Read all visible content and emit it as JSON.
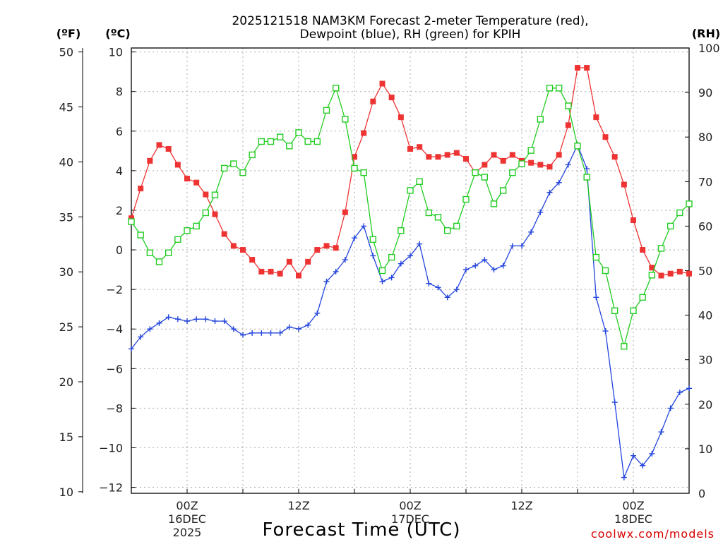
{
  "chart_data": {
    "type": "line",
    "title_line1": "2025121518 NAM3KM Forecast 2-meter Temperature (red),",
    "title_line2": "Dewpoint (blue), RH (green) for KPIH",
    "xlabel": "Forecast Time (UTC)",
    "credit": "coolwx.com/models",
    "units": {
      "fahrenheit": "(ºF)",
      "celsius": "(ºC)",
      "rh": "(RH)"
    },
    "x_range_hours": [
      -6,
      54
    ],
    "celsius_ticks": [
      "10",
      "8",
      "6",
      "4",
      "2",
      "0",
      "−2",
      "−4",
      "−6",
      "−8",
      "−10",
      "−12"
    ],
    "fahrenheit_ticks": [
      "50",
      "45",
      "40",
      "35",
      "30",
      "25",
      "20",
      "15",
      "10"
    ],
    "rh_ticks": [
      "100",
      "90",
      "80",
      "70",
      "60",
      "50",
      "40",
      "30",
      "20",
      "10",
      "0"
    ],
    "x_ticks": [
      {
        "hour": 0,
        "line1": "00Z",
        "line2": "16DEC",
        "line3": "2025"
      },
      {
        "hour": 12,
        "line1": "12Z",
        "line2": "",
        "line3": ""
      },
      {
        "hour": 24,
        "line1": "00Z",
        "line2": "17DEC",
        "line3": ""
      },
      {
        "hour": 36,
        "line1": "12Z",
        "line2": "",
        "line3": ""
      },
      {
        "hour": 48,
        "line1": "00Z",
        "line2": "18DEC",
        "line3": ""
      }
    ],
    "ylim_celsius": [
      -12.3,
      10.2
    ],
    "ylim_rh": [
      0,
      100
    ],
    "colors": {
      "temperature": "#ee3333",
      "dewpoint": "#2244dd",
      "rh": "#22cc22",
      "credit": "#d60000"
    },
    "x_hours": [
      -6,
      -5,
      -4,
      -3,
      -2,
      -1,
      0,
      1,
      2,
      3,
      4,
      5,
      6,
      7,
      8,
      9,
      10,
      11,
      12,
      13,
      14,
      15,
      16,
      17,
      18,
      19,
      20,
      21,
      22,
      23,
      24,
      25,
      26,
      27,
      28,
      29,
      30,
      31,
      32,
      33,
      34,
      35,
      36,
      37,
      38,
      39,
      40,
      41,
      42,
      43,
      44,
      45,
      46,
      47,
      48,
      49,
      50,
      51,
      52,
      53,
      54
    ],
    "series": [
      {
        "name": "Temperature (°C)",
        "axis": "celsius",
        "values": [
          1.6,
          3.1,
          4.5,
          5.3,
          5.1,
          4.3,
          3.6,
          3.4,
          2.8,
          1.8,
          0.8,
          0.2,
          0.0,
          -0.5,
          -1.1,
          -1.1,
          -1.2,
          -0.6,
          -1.3,
          -0.6,
          0.0,
          0.2,
          0.1,
          1.9,
          4.7,
          5.9,
          7.5,
          8.4,
          7.7,
          6.7,
          5.1,
          5.2,
          4.7,
          4.7,
          4.8,
          4.9,
          4.6,
          3.9,
          4.3,
          4.8,
          4.5,
          4.8,
          4.5,
          4.4,
          4.3,
          4.2,
          4.8,
          6.3,
          9.2,
          9.2,
          6.7,
          5.7,
          4.7,
          3.3,
          1.5,
          0.0,
          -0.9,
          -1.3,
          -1.2,
          -1.1,
          -1.2
        ]
      },
      {
        "name": "Dewpoint (°C)",
        "axis": "celsius",
        "values": [
          -5.0,
          -4.4,
          -4.0,
          -3.7,
          -3.4,
          -3.5,
          -3.6,
          -3.5,
          -3.5,
          -3.6,
          -3.6,
          -4.0,
          -4.3,
          -4.2,
          -4.2,
          -4.2,
          -4.2,
          -3.9,
          -4.0,
          -3.8,
          -3.2,
          -1.6,
          -1.1,
          -0.5,
          0.6,
          1.2,
          -0.3,
          -1.6,
          -1.4,
          -0.7,
          -0.3,
          0.3,
          -1.7,
          -1.9,
          -2.4,
          -2.0,
          -1.0,
          -0.8,
          -0.5,
          -1.0,
          -0.8,
          0.2,
          0.2,
          0.9,
          1.9,
          2.9,
          3.4,
          4.3,
          5.3,
          4.1,
          -2.4,
          -4.1,
          -7.7,
          -11.5,
          -10.4,
          -10.9,
          -10.3,
          -9.2,
          -8.0,
          -7.2,
          -7.0
        ]
      },
      {
        "name": "RH (%)",
        "axis": "rh",
        "values": [
          61,
          58,
          54,
          52,
          54,
          57,
          59,
          60,
          63,
          67,
          73,
          74,
          72,
          76,
          79,
          79,
          80,
          78,
          81,
          79,
          79,
          86,
          91,
          84,
          73,
          72,
          57,
          50,
          53,
          59,
          68,
          70,
          63,
          62,
          59,
          60,
          66,
          72,
          71,
          65,
          68,
          72,
          74,
          77,
          84,
          91,
          91,
          87,
          78,
          71,
          53,
          50,
          41,
          33,
          41,
          44,
          49,
          55,
          60,
          63,
          65
        ]
      }
    ]
  }
}
